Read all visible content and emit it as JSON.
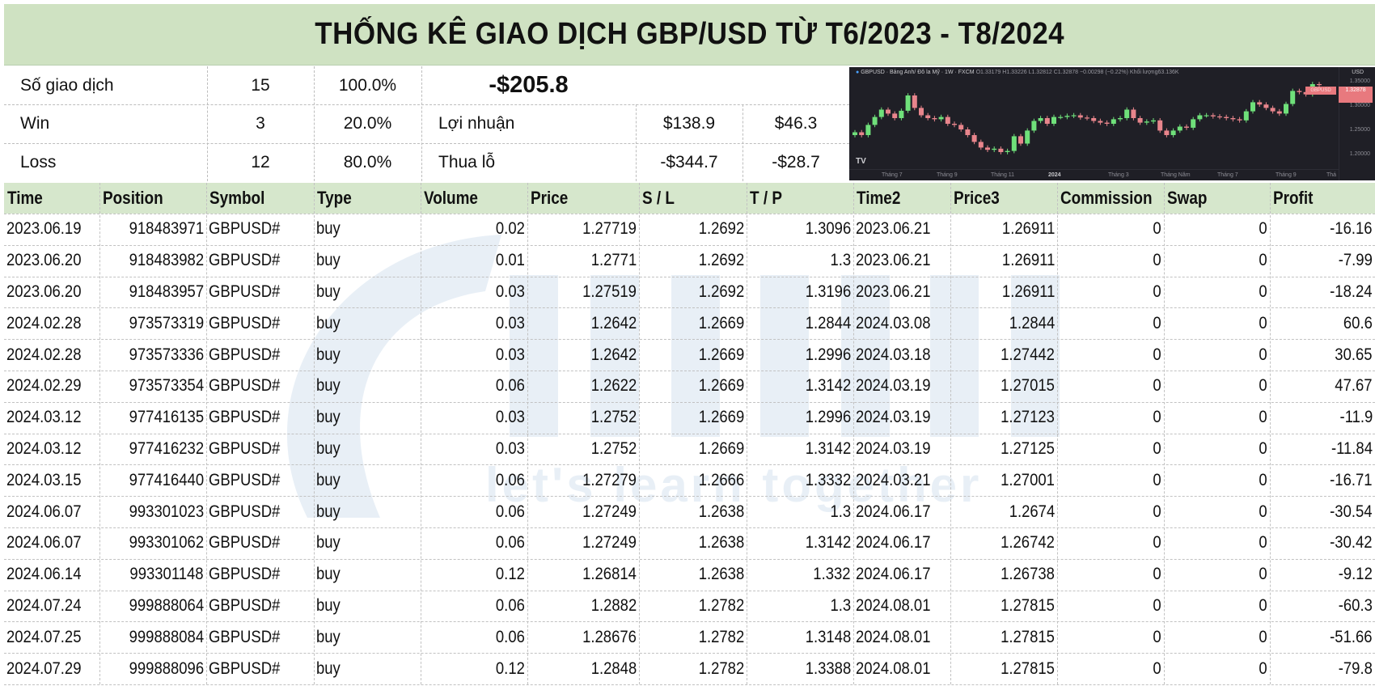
{
  "title": "THỐNG KÊ GIAO DỊCH GBP/USD TỪ T6/2023 - T8/2024",
  "summary": {
    "rows": [
      {
        "label": "Số giao dịch",
        "count": "15",
        "pct": "100.0%"
      },
      {
        "label": "Win",
        "count": "3",
        "pct": "20.0%"
      },
      {
        "label": "Loss",
        "count": "12",
        "pct": "80.0%"
      }
    ],
    "net_total": "-$205.8",
    "profit": {
      "label": "Lợi nhuận",
      "total": "$138.9",
      "avg": "$46.3"
    },
    "loss": {
      "label": "Thua lỗ",
      "total": "-$344.7",
      "avg": "-$28.7"
    }
  },
  "chart": {
    "legend_symbol": "GBPUSD · Bảng Anh/ Đô la Mỹ · 1W · FXCM",
    "legend_ohlc": "O1.33179 H1.33226 L1.32812 C1.32878 −0.00298 (−0.22%) Khối lượng63.136K",
    "currency": "USD",
    "y_ticks": [
      "1.35000",
      "1.30000",
      "1.25000",
      "1.20000"
    ],
    "x_ticks": [
      "Tháng 7",
      "Tháng 9",
      "Tháng 11",
      "2024",
      "Tháng 3",
      "Tháng Năm",
      "Tháng 7",
      "Tháng 9",
      "Thá"
    ],
    "price_tag": "1.32878",
    "symbol_tag": "GBPUSD",
    "logo": "TV",
    "colors": {
      "bg": "#1f1f26",
      "up": "#6fe07a",
      "down": "#e8858c"
    }
  },
  "table": {
    "headers": [
      "Time",
      "Position",
      "Symbol",
      "Type",
      "Volume",
      "Price",
      "S / L",
      "T / P",
      "Time2",
      "Price3",
      "Commission",
      "Swap",
      "Profit"
    ],
    "rows": [
      [
        "2023.06.19",
        "918483971",
        "GBPUSD#",
        "buy",
        "0.02",
        "1.27719",
        "1.2692",
        "1.3096",
        "2023.06.21",
        "1.26911",
        "0",
        "0",
        "-16.16"
      ],
      [
        "2023.06.20",
        "918483982",
        "GBPUSD#",
        "buy",
        "0.01",
        "1.2771",
        "1.2692",
        "1.3",
        "2023.06.21",
        "1.26911",
        "0",
        "0",
        "-7.99"
      ],
      [
        "2023.06.20",
        "918483957",
        "GBPUSD#",
        "buy",
        "0.03",
        "1.27519",
        "1.2692",
        "1.3196",
        "2023.06.21",
        "1.26911",
        "0",
        "0",
        "-18.24"
      ],
      [
        "2024.02.28",
        "973573319",
        "GBPUSD#",
        "buy",
        "0.03",
        "1.2642",
        "1.2669",
        "1.2844",
        "2024.03.08",
        "1.2844",
        "0",
        "0",
        "60.6"
      ],
      [
        "2024.02.28",
        "973573336",
        "GBPUSD#",
        "buy",
        "0.03",
        "1.2642",
        "1.2669",
        "1.2996",
        "2024.03.18",
        "1.27442",
        "0",
        "0",
        "30.65"
      ],
      [
        "2024.02.29",
        "973573354",
        "GBPUSD#",
        "buy",
        "0.06",
        "1.2622",
        "1.2669",
        "1.3142",
        "2024.03.19",
        "1.27015",
        "0",
        "0",
        "47.67"
      ],
      [
        "2024.03.12",
        "977416135",
        "GBPUSD#",
        "buy",
        "0.03",
        "1.2752",
        "1.2669",
        "1.2996",
        "2024.03.19",
        "1.27123",
        "0",
        "0",
        "-11.9"
      ],
      [
        "2024.03.12",
        "977416232",
        "GBPUSD#",
        "buy",
        "0.03",
        "1.2752",
        "1.2669",
        "1.3142",
        "2024.03.19",
        "1.27125",
        "0",
        "0",
        "-11.84"
      ],
      [
        "2024.03.15",
        "977416440",
        "GBPUSD#",
        "buy",
        "0.06",
        "1.27279",
        "1.2666",
        "1.3332",
        "2024.03.21",
        "1.27001",
        "0",
        "0",
        "-16.71"
      ],
      [
        "2024.06.07",
        "993301023",
        "GBPUSD#",
        "buy",
        "0.06",
        "1.27249",
        "1.2638",
        "1.3",
        "2024.06.17",
        "1.2674",
        "0",
        "0",
        "-30.54"
      ],
      [
        "2024.06.07",
        "993301062",
        "GBPUSD#",
        "buy",
        "0.06",
        "1.27249",
        "1.2638",
        "1.3142",
        "2024.06.17",
        "1.26742",
        "0",
        "0",
        "-30.42"
      ],
      [
        "2024.06.14",
        "993301148",
        "GBPUSD#",
        "buy",
        "0.12",
        "1.26814",
        "1.2638",
        "1.332",
        "2024.06.17",
        "1.26738",
        "0",
        "0",
        "-9.12"
      ],
      [
        "2024.07.24",
        "999888064",
        "GBPUSD#",
        "buy",
        "0.06",
        "1.2882",
        "1.2782",
        "1.3",
        "2024.08.01",
        "1.27815",
        "0",
        "0",
        "-60.3"
      ],
      [
        "2024.07.25",
        "999888084",
        "GBPUSD#",
        "buy",
        "0.06",
        "1.28676",
        "1.2782",
        "1.3148",
        "2024.08.01",
        "1.27815",
        "0",
        "0",
        "-51.66"
      ],
      [
        "2024.07.29",
        "999888096",
        "GBPUSD#",
        "buy",
        "0.12",
        "1.2848",
        "1.2782",
        "1.3388",
        "2024.08.01",
        "1.27815",
        "0",
        "0",
        "-79.8"
      ]
    ]
  },
  "watermark": "let's learn together"
}
